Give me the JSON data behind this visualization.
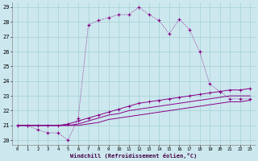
{
  "xlabel": "Windchill (Refroidissement éolien,°C)",
  "xlim": [
    -0.5,
    23.5
  ],
  "ylim": [
    19.7,
    29.3
  ],
  "xticks": [
    0,
    1,
    2,
    3,
    4,
    5,
    6,
    7,
    8,
    9,
    10,
    11,
    12,
    13,
    14,
    15,
    16,
    17,
    18,
    19,
    20,
    21,
    22,
    23
  ],
  "yticks": [
    20,
    21,
    22,
    23,
    24,
    25,
    26,
    27,
    28,
    29
  ],
  "background_color": "#cce8ee",
  "grid_color": "#99cccc",
  "line_color": "#880088",
  "line1_x": [
    0,
    1,
    2,
    3,
    4,
    5,
    6,
    7,
    8,
    9,
    10,
    11,
    12,
    13,
    14,
    15,
    16,
    17,
    18,
    19,
    20,
    21,
    22,
    23
  ],
  "line1_y": [
    21.0,
    21.0,
    20.7,
    20.5,
    20.5,
    20.0,
    21.5,
    27.8,
    28.1,
    28.3,
    28.5,
    28.5,
    29.0,
    28.5,
    28.1,
    27.2,
    28.2,
    27.5,
    26.0,
    23.8,
    23.3,
    22.8,
    22.8,
    22.8
  ],
  "line2_x": [
    0,
    1,
    2,
    3,
    4,
    5,
    6,
    7,
    8,
    9,
    10,
    11,
    12,
    13,
    14,
    15,
    16,
    17,
    18,
    19,
    20,
    21,
    22,
    23
  ],
  "line2_y": [
    21.0,
    21.0,
    21.0,
    21.0,
    21.0,
    21.1,
    21.3,
    21.5,
    21.7,
    21.9,
    22.1,
    22.3,
    22.5,
    22.6,
    22.7,
    22.8,
    22.9,
    23.0,
    23.1,
    23.2,
    23.3,
    23.4,
    23.4,
    23.5
  ],
  "line3_x": [
    0,
    1,
    2,
    3,
    4,
    5,
    6,
    7,
    8,
    9,
    10,
    11,
    12,
    13,
    14,
    15,
    16,
    17,
    18,
    19,
    20,
    21,
    22,
    23
  ],
  "line3_y": [
    21.0,
    21.0,
    21.0,
    21.0,
    21.0,
    21.0,
    21.1,
    21.3,
    21.5,
    21.7,
    21.8,
    22.0,
    22.1,
    22.2,
    22.3,
    22.4,
    22.5,
    22.6,
    22.7,
    22.8,
    22.9,
    23.0,
    23.0,
    23.0
  ],
  "line4_x": [
    0,
    1,
    2,
    3,
    4,
    5,
    6,
    7,
    8,
    9,
    10,
    11,
    12,
    13,
    14,
    15,
    16,
    17,
    18,
    19,
    20,
    21,
    22,
    23
  ],
  "line4_y": [
    21.0,
    21.0,
    21.0,
    21.0,
    21.0,
    21.0,
    21.0,
    21.1,
    21.2,
    21.4,
    21.5,
    21.6,
    21.7,
    21.8,
    21.9,
    22.0,
    22.1,
    22.2,
    22.3,
    22.4,
    22.5,
    22.6,
    22.6,
    22.7
  ]
}
